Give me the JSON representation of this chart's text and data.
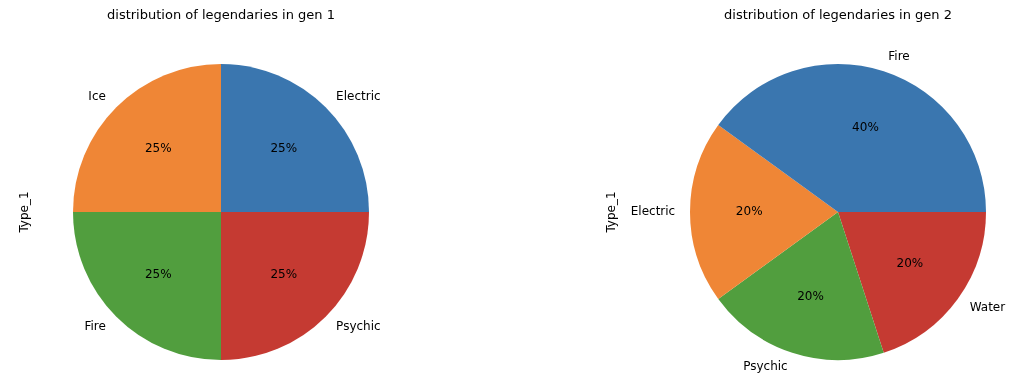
{
  "chart_data": [
    {
      "type": "pie",
      "title": "distribution of legendaries in gen 1",
      "ylabel": "Type_1",
      "categories": [
        "Electric",
        "Ice",
        "Fire",
        "Psychic"
      ],
      "values": [
        25,
        25,
        25,
        25
      ],
      "value_labels": [
        "25%",
        "25%",
        "25%",
        "25%"
      ],
      "colors": [
        "#3a76af",
        "#ef8636",
        "#519e3e",
        "#c53a32"
      ],
      "legend": false
    },
    {
      "type": "pie",
      "title": "distribution of legendaries in gen 2",
      "ylabel": "Type_1",
      "categories": [
        "Fire",
        "Electric",
        "Psychic",
        "Water"
      ],
      "values": [
        40,
        20,
        20,
        20
      ],
      "value_labels": [
        "40%",
        "20%",
        "20%",
        "20%"
      ],
      "colors": [
        "#3a76af",
        "#ef8636",
        "#519e3e",
        "#c53a32"
      ],
      "legend": false
    }
  ]
}
